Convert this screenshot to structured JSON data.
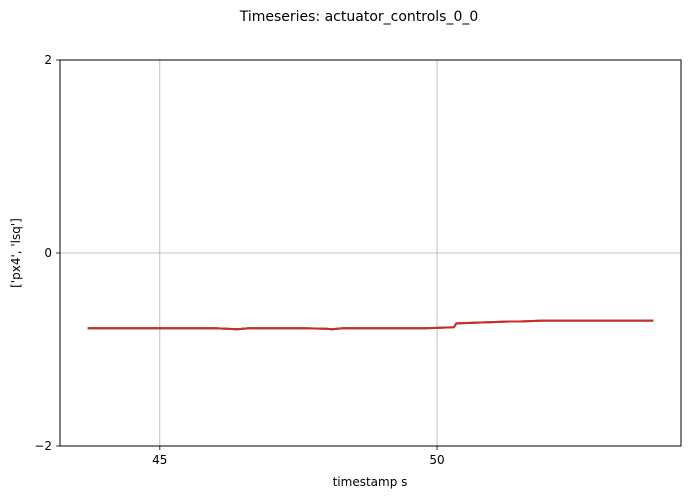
{
  "chart_data": {
    "type": "line",
    "title": "Timeseries: actuator_controls_0_0",
    "xlabel": "timestamp s",
    "ylabel": "['px4', 'lsq']",
    "xlim": [
      43.2,
      54.4
    ],
    "ylim": [
      -2,
      2
    ],
    "xticks": [
      45,
      50
    ],
    "xtick_labels": [
      "45",
      "50"
    ],
    "yticks": [
      -2,
      0,
      2
    ],
    "ytick_labels": [
      "−2",
      "0",
      "2"
    ],
    "grid": true,
    "series": [
      {
        "color": "#1f77b4",
        "x": [
          43.7,
          45.0,
          46.0,
          46.4,
          46.6,
          47.0,
          47.6,
          48.0,
          48.1,
          48.3,
          49.0,
          49.8,
          50.3,
          50.35,
          50.8,
          51.3,
          51.5,
          51.9,
          52.5,
          53.2,
          53.9
        ],
        "y": [
          -0.78,
          -0.78,
          -0.78,
          -0.79,
          -0.78,
          -0.78,
          -0.78,
          -0.785,
          -0.79,
          -0.78,
          -0.78,
          -0.78,
          -0.77,
          -0.73,
          -0.72,
          -0.71,
          -0.71,
          -0.7,
          -0.7,
          -0.7,
          -0.7
        ]
      },
      {
        "color": "#2ca02c",
        "x": [
          43.7,
          45.0,
          46.0,
          46.4,
          46.6,
          47.0,
          47.6,
          48.0,
          48.1,
          48.3,
          49.0,
          49.8,
          50.3,
          50.35,
          50.8,
          51.3,
          51.5,
          51.9,
          52.5,
          53.2,
          53.9
        ],
        "y": [
          -0.78,
          -0.78,
          -0.78,
          -0.79,
          -0.78,
          -0.78,
          -0.78,
          -0.785,
          -0.79,
          -0.78,
          -0.78,
          -0.78,
          -0.77,
          -0.73,
          -0.72,
          -0.71,
          -0.71,
          -0.7,
          -0.7,
          -0.7,
          -0.7
        ]
      },
      {
        "color": "#d62728",
        "x": [
          43.7,
          45.0,
          46.0,
          46.4,
          46.6,
          47.0,
          47.6,
          48.0,
          48.1,
          48.3,
          49.0,
          49.8,
          50.3,
          50.35,
          50.8,
          51.3,
          51.5,
          51.9,
          52.5,
          53.2,
          53.9
        ],
        "y": [
          -0.78,
          -0.78,
          -0.78,
          -0.79,
          -0.78,
          -0.78,
          -0.78,
          -0.785,
          -0.79,
          -0.78,
          -0.78,
          -0.78,
          -0.77,
          -0.73,
          -0.72,
          -0.71,
          -0.71,
          -0.7,
          -0.7,
          -0.7,
          -0.7
        ]
      }
    ]
  }
}
